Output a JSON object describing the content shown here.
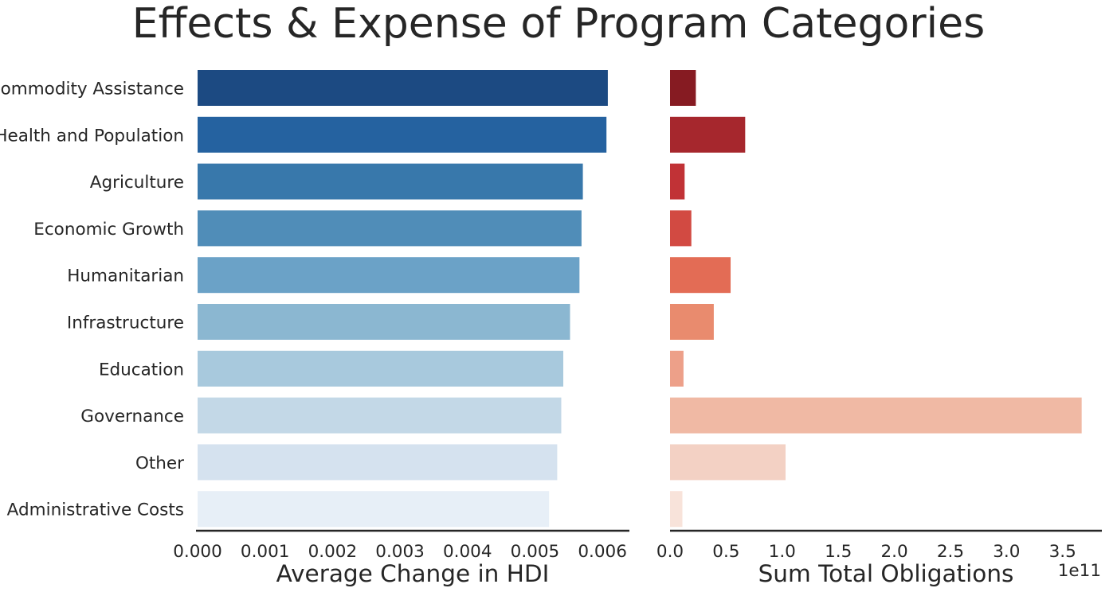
{
  "chart_data": [
    {
      "type": "bar",
      "orientation": "horizontal",
      "title": "Effects & Expense of Program Categories",
      "categories": [
        "Commodity Assistance",
        "Health and Population",
        "Agriculture",
        "Economic Growth",
        "Humanitarian",
        "Infrastructure",
        "Education",
        "Governance",
        "Other",
        "Administrative Costs"
      ],
      "values": [
        0.00608,
        0.00606,
        0.00571,
        0.00569,
        0.00566,
        0.00552,
        0.00542,
        0.00539,
        0.00533,
        0.00521
      ],
      "xlabel": "Average Change in HDI",
      "xlim": [
        0,
        0.0064
      ],
      "xticks": [
        "0.000",
        "0.001",
        "0.002",
        "0.003",
        "0.004",
        "0.005",
        "0.006"
      ],
      "xtick_values": [
        0,
        0.001,
        0.002,
        0.003,
        0.004,
        0.005,
        0.006
      ],
      "colors": [
        "#1c4a82",
        "#2562a0",
        "#3878ab",
        "#508db8",
        "#6ba2c7",
        "#8bb7d1",
        "#a8c9dd",
        "#c3d8e7",
        "#d5e2ef",
        "#e7eff7"
      ],
      "grid": false
    },
    {
      "type": "bar",
      "orientation": "horizontal",
      "categories": [
        "Commodity Assistance",
        "Health and Population",
        "Agriculture",
        "Economic Growth",
        "Humanitarian",
        "Infrastructure",
        "Education",
        "Governance",
        "Other",
        "Administrative Costs"
      ],
      "values": [
        0.23,
        0.67,
        0.13,
        0.19,
        0.54,
        0.39,
        0.12,
        3.67,
        1.03,
        0.11
      ],
      "xlabel": "Sum Total Obligations",
      "offset_text": "1e11",
      "xlim": [
        0,
        3.85
      ],
      "xticks": [
        "0.0",
        "0.5",
        "1.0",
        "1.5",
        "2.0",
        "2.5",
        "3.0",
        "3.5"
      ],
      "xtick_values": [
        0,
        0.5,
        1.0,
        1.5,
        2.0,
        2.5,
        3.0,
        3.5
      ],
      "colors": [
        "#861b22",
        "#a6272d",
        "#c13236",
        "#d24a42",
        "#e36c55",
        "#e98b6e",
        "#eda089",
        "#f0b9a4",
        "#f3d1c4",
        "#f8e3da"
      ],
      "grid": false
    }
  ]
}
